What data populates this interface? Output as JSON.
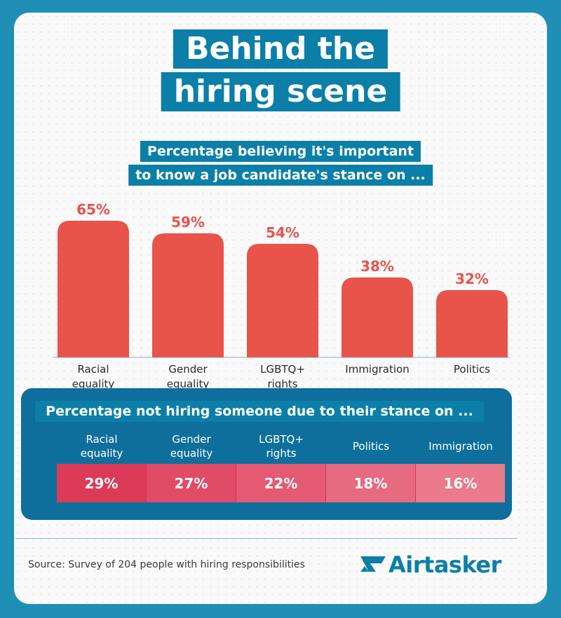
{
  "title_line1": "Behind the",
  "title_line2": "hiring scene",
  "subtitle_line1": "Percentage believing it's important",
  "subtitle_line2": "to know a job candidate's stance on ...",
  "chart_data": [
    {
      "type": "bar",
      "categories": [
        [
          "Racial",
          "equality"
        ],
        [
          "Gender",
          "equality"
        ],
        [
          "LGBTQ+",
          "rights"
        ],
        [
          "Immigration"
        ],
        [
          "Politics"
        ]
      ],
      "values": [
        65,
        59,
        54,
        38,
        32
      ],
      "value_labels": [
        "65%",
        "59%",
        "54%",
        "38%",
        "32%"
      ],
      "ylim": [
        0,
        70
      ],
      "colors": {
        "bar": "#e8534a",
        "label": "#e8534a"
      }
    },
    {
      "type": "table",
      "title": "Percentage not hiring someone due to their stance on ...",
      "columns": [
        [
          "Racial",
          "equality"
        ],
        [
          "Gender",
          "equality"
        ],
        [
          "LGBTQ+",
          "rights"
        ],
        [
          "Politics"
        ],
        [
          "Immigration"
        ]
      ],
      "values": [
        29,
        27,
        22,
        18,
        16
      ],
      "value_labels": [
        "29%",
        "27%",
        "22%",
        "18%",
        "16%"
      ],
      "cell_colors": [
        "#dc3b58",
        "#e04b66",
        "#e45a73",
        "#e66a80",
        "#ea7a8c"
      ]
    }
  ],
  "source": "Source: Survey of 204 people with hiring responsibilities",
  "logo_text": "Airtasker"
}
